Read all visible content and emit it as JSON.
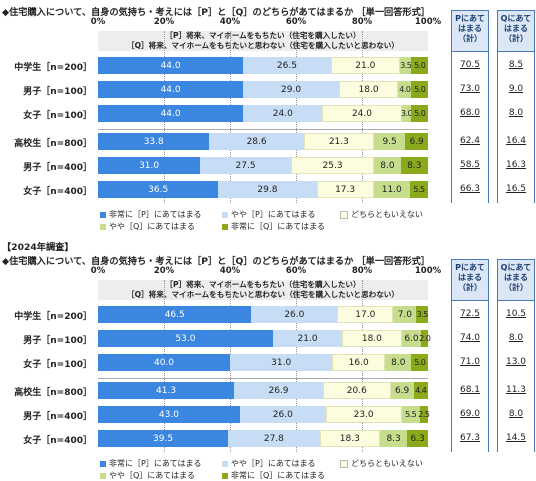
{
  "colors": {
    "very_p": "#3b86e0",
    "some_p": "#c6ddf5",
    "neither": "#fcfcde",
    "some_q": "#c7dd8e",
    "very_q": "#8aaa1c"
  },
  "tick_labels": [
    "0%",
    "20%",
    "40%",
    "60%",
    "80%",
    "100%"
  ],
  "chart_data": [
    {
      "type": "bar",
      "orientation": "horizontal-stacked",
      "year": "",
      "title": "◆住宅購入について、自身の気持ち・考えには［P］と［Q］のどちらがあてはまるか ［単一回答形式］",
      "p_statement": "［P］将来、マイホームをもちたい（住宅を購入したい）",
      "q_statement": "［Q］将来、マイホームをもちたいと思わない（住宅を購入したいと思わない）",
      "xlim": [
        0,
        100
      ],
      "col_p_header": [
        "Pにあて",
        "はまる",
        "（計）"
      ],
      "col_q_header": [
        "Qにあて",
        "はまる",
        "（計）"
      ],
      "categories": [
        "中学生［n=200］",
        "男子［n=100］",
        "女子［n=100］",
        "高校生［n=800］",
        "男子［n=400］",
        "女子［n=400］"
      ],
      "series": [
        {
          "name": "非常に［P］にあてはまる",
          "values": [
            44.0,
            44.0,
            44.0,
            33.8,
            31.0,
            36.5
          ]
        },
        {
          "name": "やや［P］にあてはまる",
          "values": [
            26.5,
            29.0,
            24.0,
            28.6,
            27.5,
            29.8
          ]
        },
        {
          "name": "どちらともいえない",
          "values": [
            21.0,
            18.0,
            24.0,
            21.3,
            25.3,
            17.3
          ]
        },
        {
          "name": "やや［Q］にあてはまる",
          "values": [
            3.5,
            4.0,
            3.0,
            9.5,
            8.0,
            11.0
          ]
        },
        {
          "name": "非常に［Q］にあてはまる",
          "values": [
            5.0,
            5.0,
            5.0,
            6.9,
            8.3,
            5.5
          ]
        }
      ],
      "p_total": [
        "70.5",
        "73.0",
        "68.0",
        "62.4",
        "58.5",
        "66.3"
      ],
      "q_total": [
        "8.5",
        "9.0",
        "8.0",
        "16.4",
        "16.3",
        "16.5"
      ],
      "value_labels": [
        [
          "44.0",
          "26.5",
          "21.0",
          "3.5",
          "5.0"
        ],
        [
          "44.0",
          "29.0",
          "18.0",
          "4.0",
          "5.0"
        ],
        [
          "44.0",
          "24.0",
          "24.0",
          "3.0",
          "5.0"
        ],
        [
          "33.8",
          "28.6",
          "21.3",
          "9.5",
          "6.9"
        ],
        [
          "31.0",
          "27.5",
          "25.3",
          "8.0",
          "8.3"
        ],
        [
          "36.5",
          "29.8",
          "17.3",
          "11.0",
          "5.5"
        ]
      ]
    },
    {
      "type": "bar",
      "orientation": "horizontal-stacked",
      "year": "【2024年調査】",
      "title": "◆住宅購入について、自身の気持ち・考えには［P］と［Q］のどちらがあてはまるか ［単一回答形式］",
      "p_statement": "［P］将来、マイホームをもちたい（住宅を購入したい）",
      "q_statement": "［Q］将来、マイホームをもちたいと思わない（住宅を購入したいと思わない）",
      "xlim": [
        0,
        100
      ],
      "col_p_header": [
        "Pにあて",
        "はまる",
        "（計）"
      ],
      "col_q_header": [
        "Qにあて",
        "はまる",
        "（計）"
      ],
      "categories": [
        "中学生［n=200］",
        "男子［n=100］",
        "女子［n=100］",
        "高校生［n=800］",
        "男子［n=400］",
        "女子［n=400］"
      ],
      "series": [
        {
          "name": "非常に［P］にあてはまる",
          "values": [
            46.5,
            53.0,
            40.0,
            41.3,
            43.0,
            39.5
          ]
        },
        {
          "name": "やや［P］にあてはまる",
          "values": [
            26.0,
            21.0,
            31.0,
            26.9,
            26.0,
            27.8
          ]
        },
        {
          "name": "どちらともいえない",
          "values": [
            17.0,
            18.0,
            16.0,
            20.6,
            23.0,
            18.3
          ]
        },
        {
          "name": "やや［Q］にあてはまる",
          "values": [
            7.0,
            6.0,
            8.0,
            6.9,
            5.5,
            8.3
          ]
        },
        {
          "name": "非常に［Q］にあてはまる",
          "values": [
            3.5,
            2.0,
            5.0,
            4.4,
            2.5,
            6.3
          ]
        }
      ],
      "p_total": [
        "72.5",
        "74.0",
        "71.0",
        "68.1",
        "69.0",
        "67.3"
      ],
      "q_total": [
        "10.5",
        "8.0",
        "13.0",
        "11.3",
        "8.0",
        "14.5"
      ],
      "value_labels": [
        [
          "46.5",
          "26.0",
          "17.0",
          "7.0",
          "3.5"
        ],
        [
          "53.0",
          "21.0",
          "18.0",
          "6.0",
          "2.0"
        ],
        [
          "40.0",
          "31.0",
          "16.0",
          "8.0",
          "5.0"
        ],
        [
          "41.3",
          "26.9",
          "20.6",
          "6.9",
          "4.4"
        ],
        [
          "43.0",
          "26.0",
          "23.0",
          "5.5",
          "2.5"
        ],
        [
          "39.5",
          "27.8",
          "18.3",
          "8.3",
          "6.3"
        ]
      ]
    }
  ]
}
